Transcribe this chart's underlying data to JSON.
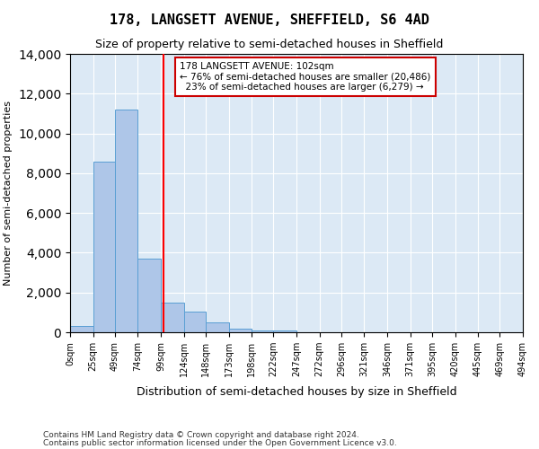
{
  "title": "178, LANGSETT AVENUE, SHEFFIELD, S6 4AD",
  "subtitle": "Size of property relative to semi-detached houses in Sheffield",
  "xlabel": "Distribution of semi-detached houses by size in Sheffield",
  "ylabel": "Number of semi-detached properties",
  "property_size": 102,
  "property_label": "178 LANGSETT AVENUE: 102sqm",
  "pct_smaller": 76,
  "count_smaller": "20,486",
  "pct_larger": 23,
  "count_larger": "6,279",
  "bin_edges": [
    0,
    25,
    49,
    74,
    99,
    124,
    148,
    173,
    198,
    222,
    247,
    272,
    296,
    321,
    346,
    371,
    395,
    420,
    445,
    469,
    494
  ],
  "bin_labels": [
    "0sqm",
    "25sqm",
    "49sqm",
    "74sqm",
    "99sqm",
    "124sqm",
    "148sqm",
    "173sqm",
    "198sqm",
    "222sqm",
    "247sqm",
    "272sqm",
    "296sqm",
    "321sqm",
    "346sqm",
    "371sqm",
    "395sqm",
    "420sqm",
    "445sqm",
    "469sqm",
    "494sqm"
  ],
  "bar_heights": [
    300,
    8600,
    11200,
    3700,
    1500,
    1050,
    500,
    200,
    100,
    100,
    0,
    0,
    0,
    0,
    0,
    0,
    0,
    0,
    0,
    0
  ],
  "bar_color": "#aec6e8",
  "bar_edge_color": "#5a9fd4",
  "red_line_x": 102,
  "ylim": [
    0,
    14000
  ],
  "yticks": [
    0,
    2000,
    4000,
    6000,
    8000,
    10000,
    12000,
    14000
  ],
  "bg_color": "#dce9f5",
  "annotation_box_color": "#ffffff",
  "annotation_box_edge": "#cc0000",
  "footer1": "Contains HM Land Registry data © Crown copyright and database right 2024.",
  "footer2": "Contains public sector information licensed under the Open Government Licence v3.0."
}
